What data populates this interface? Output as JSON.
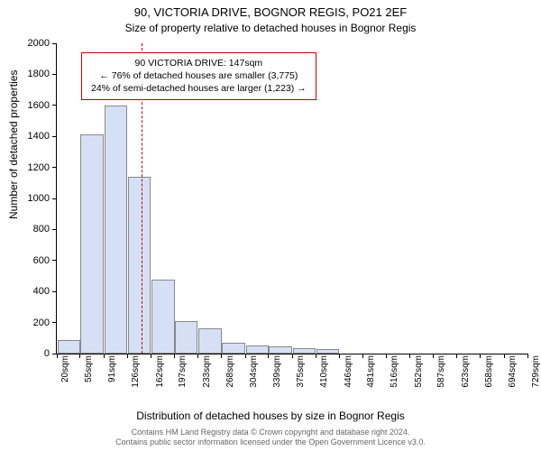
{
  "titles": {
    "line1": "90, VICTORIA DRIVE, BOGNOR REGIS, PO21 2EF",
    "line2": "Size of property relative to detached houses in Bognor Regis"
  },
  "ylabel": "Number of detached properties",
  "xlabel": "Distribution of detached houses by size in Bognor Regis",
  "chart": {
    "ylim": [
      0,
      2000
    ],
    "ytick_step": 200,
    "bar_color": "#d6e0f5",
    "bar_border": "#888888",
    "marker": {
      "x_sqm": 147,
      "color": "#c00000",
      "dash": true
    },
    "annotation": {
      "line1": "90 VICTORIA DRIVE: 147sqm",
      "line2": "← 76% of detached houses are smaller (3,775)",
      "line3": "24% of semi-detached houses are larger (1,223) →",
      "border_color": "#c00000"
    },
    "x_ticks_sqm": [
      20,
      55,
      91,
      126,
      162,
      197,
      233,
      268,
      304,
      339,
      375,
      410,
      446,
      481,
      516,
      552,
      587,
      623,
      658,
      694,
      729
    ],
    "bars": [
      {
        "x_sqm": 20,
        "value": 85
      },
      {
        "x_sqm": 55,
        "value": 1410
      },
      {
        "x_sqm": 91,
        "value": 1600
      },
      {
        "x_sqm": 126,
        "value": 1140
      },
      {
        "x_sqm": 162,
        "value": 475
      },
      {
        "x_sqm": 197,
        "value": 210
      },
      {
        "x_sqm": 233,
        "value": 160
      },
      {
        "x_sqm": 268,
        "value": 68
      },
      {
        "x_sqm": 304,
        "value": 55
      },
      {
        "x_sqm": 339,
        "value": 45
      },
      {
        "x_sqm": 375,
        "value": 35
      },
      {
        "x_sqm": 410,
        "value": 28
      }
    ]
  },
  "attribution": {
    "line1": "Contains HM Land Registry data © Crown copyright and database right 2024.",
    "line2": "Contains public sector information licensed under the Open Government Licence v3.0."
  }
}
